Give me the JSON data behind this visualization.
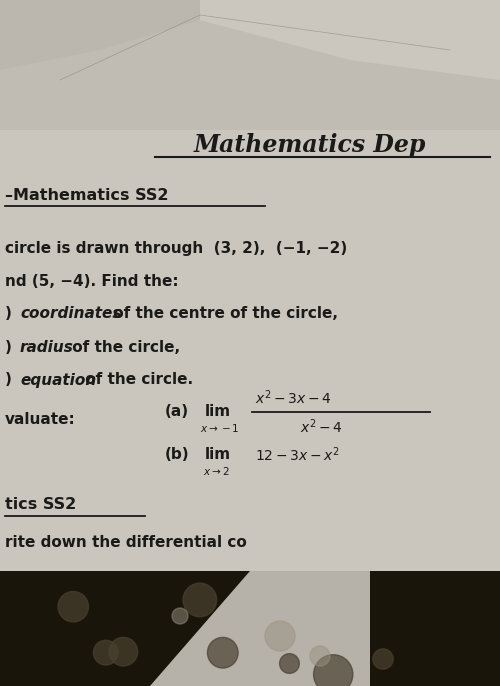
{
  "paper_color": "#d8d4cc",
  "top_bg_color": "#b8b4ac",
  "main_bg_color": "#c8c4bc",
  "text_color": "#1a1a18",
  "title_text": "Mathematics Dep",
  "title_fontsize": 17,
  "subtitle_text": "Mathematics SS2",
  "subtitle_fontsize": 11.5,
  "body_fontsize": 11,
  "small_fontsize": 8.5,
  "math_fontsize": 10,
  "line1": "circle is drawn through  (3, 2),  (−1, −2)",
  "line2": "nd (5, −4). Find the:",
  "footer_label": "tics SS2",
  "footer2": "rite down the differential co",
  "dark_strip_color": "#1a150a",
  "shadow_color": "#888070"
}
